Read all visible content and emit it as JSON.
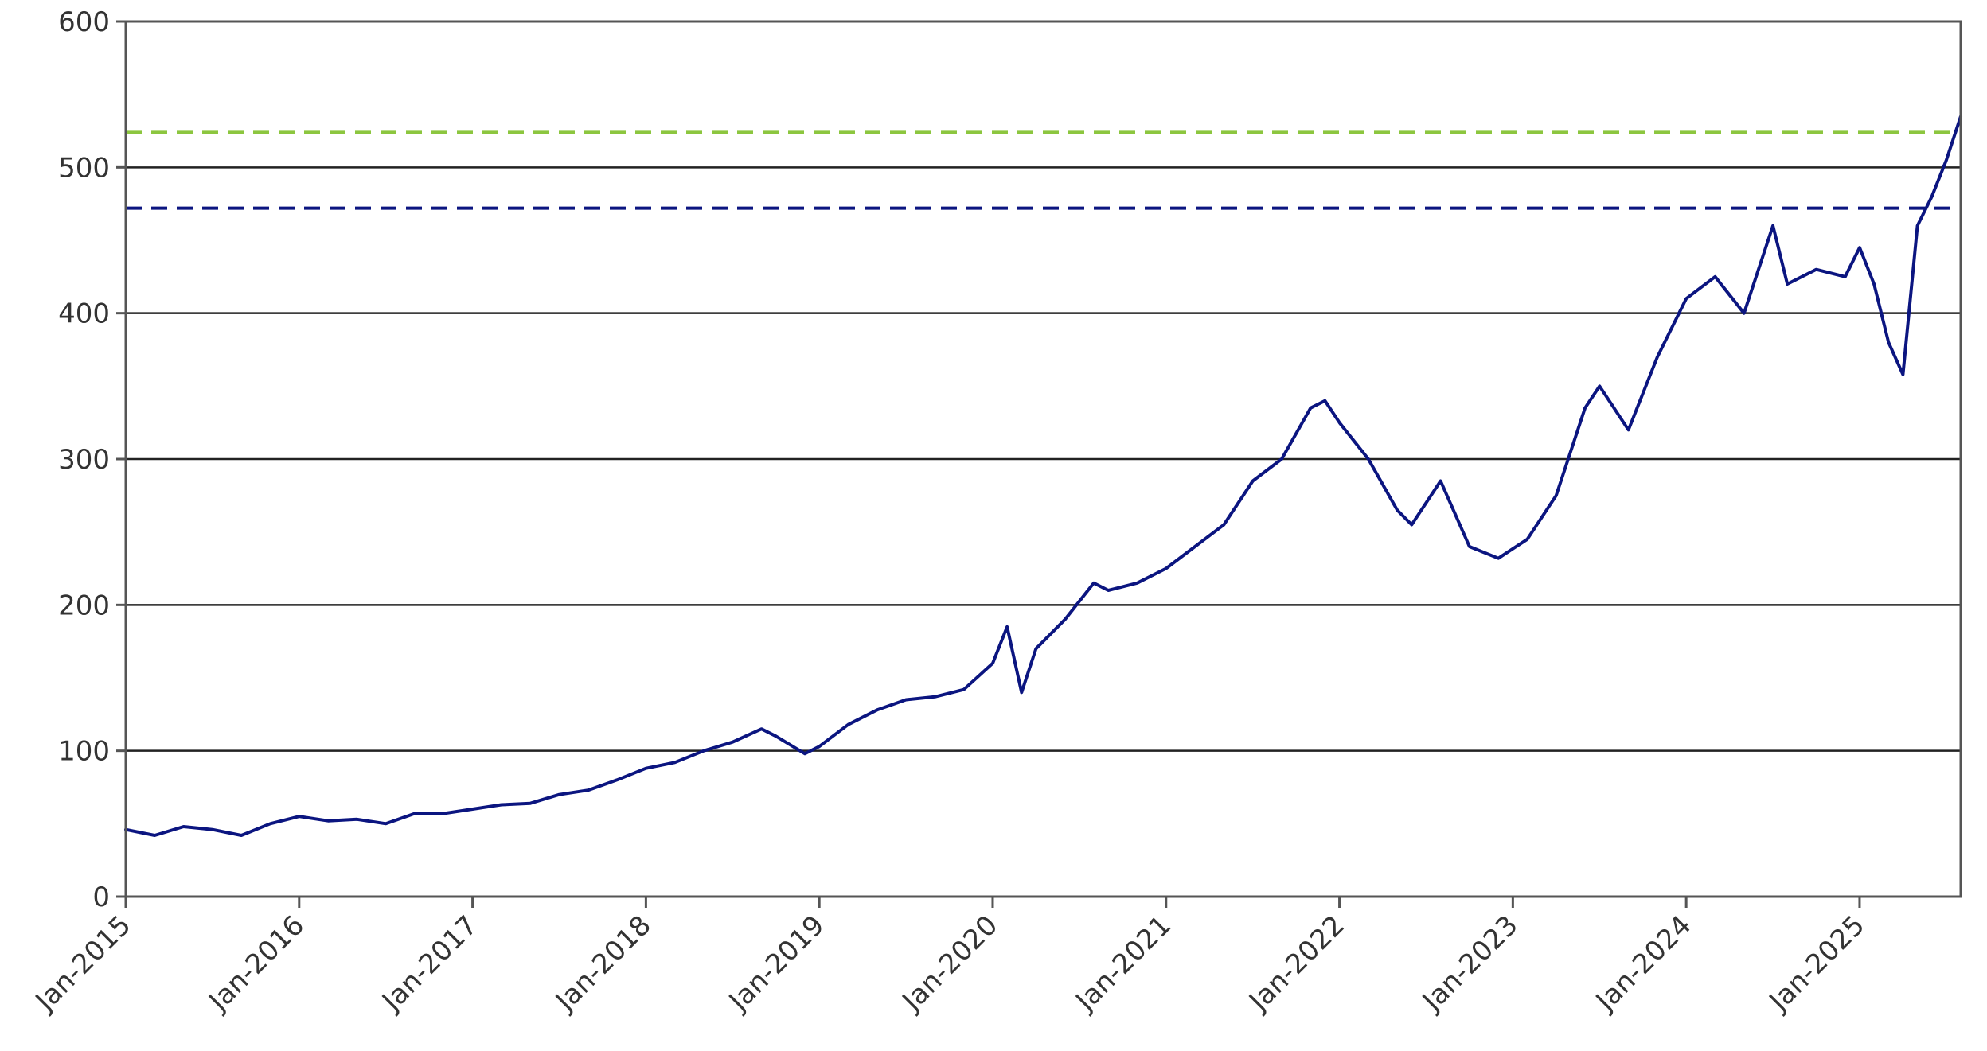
{
  "chart_data": {
    "type": "line",
    "title": "",
    "xlabel": "",
    "ylabel": "",
    "ylim": [
      0,
      600
    ],
    "xlim": [
      "2015-01",
      "2025-08"
    ],
    "grid": "horizontal",
    "y_ticks": [
      "0",
      "100",
      "200",
      "300",
      "400",
      "500",
      "600"
    ],
    "x_ticks": [
      "Jan-2015",
      "Jan-2016",
      "Jan-2017",
      "Jan-2018",
      "Jan-2019",
      "Jan-2020",
      "Jan-2021",
      "Jan-2022",
      "Jan-2023",
      "Jan-2024",
      "Jan-2025"
    ],
    "series": [
      {
        "color": "#0b1580",
        "x": [
          "2015-01",
          "2015-03",
          "2015-05",
          "2015-07",
          "2015-09",
          "2015-11",
          "2016-01",
          "2016-03",
          "2016-05",
          "2016-07",
          "2016-09",
          "2016-11",
          "2017-01",
          "2017-03",
          "2017-05",
          "2017-07",
          "2017-09",
          "2017-11",
          "2018-01",
          "2018-03",
          "2018-05",
          "2018-07",
          "2018-09",
          "2018-10",
          "2018-12",
          "2019-01",
          "2019-03",
          "2019-05",
          "2019-07",
          "2019-09",
          "2019-11",
          "2020-01",
          "2020-02",
          "2020-03",
          "2020-04",
          "2020-06",
          "2020-08",
          "2020-09",
          "2020-11",
          "2021-01",
          "2021-03",
          "2021-05",
          "2021-07",
          "2021-09",
          "2021-11",
          "2021-12",
          "2022-01",
          "2022-03",
          "2022-05",
          "2022-06",
          "2022-08",
          "2022-10",
          "2022-12",
          "2023-02",
          "2023-04",
          "2023-06",
          "2023-07",
          "2023-09",
          "2023-11",
          "2024-01",
          "2024-03",
          "2024-05",
          "2024-07",
          "2024-08",
          "2024-10",
          "2024-12",
          "2025-01",
          "2025-02",
          "2025-03",
          "2025-04",
          "2025-05",
          "2025-06",
          "2025-07",
          "2025-08"
        ],
        "values": [
          46,
          42,
          48,
          46,
          42,
          50,
          55,
          52,
          53,
          50,
          57,
          57,
          60,
          63,
          64,
          70,
          73,
          80,
          88,
          92,
          100,
          106,
          115,
          110,
          98,
          103,
          118,
          128,
          135,
          137,
          142,
          160,
          185,
          140,
          170,
          190,
          215,
          210,
          215,
          225,
          240,
          255,
          285,
          300,
          335,
          340,
          325,
          300,
          265,
          255,
          285,
          240,
          232,
          245,
          275,
          335,
          350,
          320,
          370,
          410,
          425,
          400,
          460,
          420,
          430,
          425,
          445,
          420,
          380,
          358,
          460,
          480,
          505,
          535
        ]
      }
    ],
    "reference_lines": [
      {
        "value": 524,
        "color": "#8cc63f",
        "style": "dashed"
      },
      {
        "value": 472,
        "color": "#0b1580",
        "style": "dashed"
      }
    ]
  }
}
